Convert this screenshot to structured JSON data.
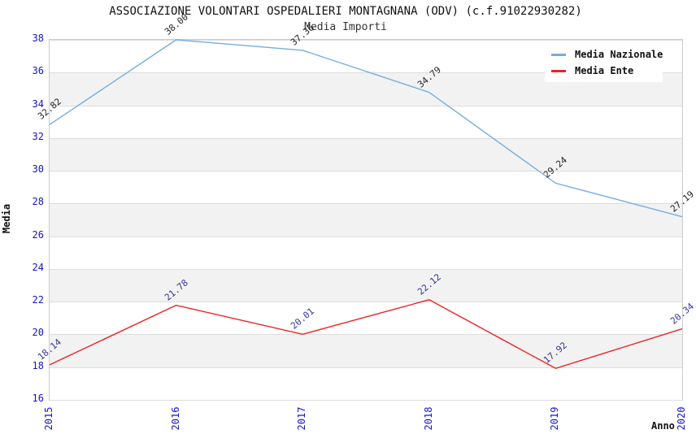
{
  "title": "ASSOCIAZIONE VOLONTARI OSPEDALIERI MONTAGNANA (ODV) (c.f.91022930282)",
  "subtitle": "Media Importi",
  "legend": {
    "items": [
      {
        "label": "Media Nazionale",
        "color": "#76ade0"
      },
      {
        "label": "Media Ente",
        "color": "#ee2222"
      }
    ]
  },
  "chart_data": {
    "type": "line",
    "x": [
      "2015",
      "2016",
      "2017",
      "2018",
      "2019",
      "2020"
    ],
    "series": [
      {
        "name": "Media Nazionale",
        "color": "#76ade0",
        "label_color": "#222222",
        "values": [
          32.82,
          38.0,
          37.36,
          34.79,
          29.24,
          27.19
        ]
      },
      {
        "name": "Media Ente",
        "color": "#ee2222",
        "label_color": "#333399",
        "values": [
          18.14,
          21.78,
          20.01,
          22.12,
          17.92,
          20.34
        ]
      }
    ],
    "xlabel": "Anno",
    "ylabel": "Media",
    "ylim": [
      16,
      38
    ],
    "yticks": [
      16,
      18,
      20,
      22,
      24,
      26,
      28,
      30,
      32,
      34,
      36,
      38
    ],
    "grid": true,
    "band_color": "#f2f2f2",
    "gridline_color": "#dddddd",
    "tick_color": "#1515cc",
    "legend_position": "top-right"
  }
}
